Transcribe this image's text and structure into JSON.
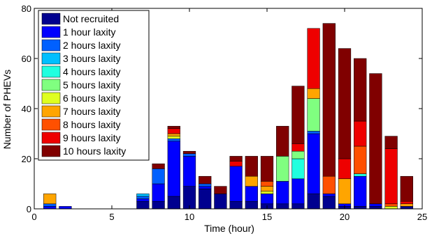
{
  "chart_data": {
    "type": "bar",
    "stacked": true,
    "xlabel": "Time (hour)",
    "ylabel": "Number of PHEVs",
    "xlim": [
      0,
      25
    ],
    "ylim": [
      0,
      80
    ],
    "xticks": [
      0,
      5,
      10,
      15,
      20,
      25
    ],
    "yticks": [
      0,
      20,
      40,
      60,
      80
    ],
    "legend_position": "top-left",
    "grid": false,
    "x": [
      1,
      2,
      3,
      4,
      5,
      6,
      7,
      8,
      9,
      10,
      11,
      12,
      13,
      14,
      15,
      16,
      17,
      18,
      19,
      20,
      21,
      22,
      23,
      24
    ],
    "series": [
      {
        "name": "Not recruited",
        "color": "#00008F",
        "values": [
          0,
          0,
          0,
          0,
          0,
          0,
          3,
          3,
          5,
          9,
          8,
          6,
          3,
          3,
          2,
          2,
          2,
          6,
          5,
          1,
          1,
          1,
          0,
          1
        ]
      },
      {
        "name": "1 hour laxity",
        "color": "#0000FF",
        "values": [
          1,
          1,
          0,
          0,
          0,
          0,
          1,
          7,
          22,
          12,
          1,
          0,
          14,
          6,
          4,
          9,
          10,
          24,
          1,
          1,
          12,
          1,
          0,
          0
        ]
      },
      {
        "name": "2 hours laxity",
        "color": "#0060FF",
        "values": [
          1,
          0,
          0,
          0,
          0,
          0,
          1,
          6,
          1,
          1,
          1,
          0,
          0,
          0,
          0,
          0,
          0,
          1,
          0,
          0,
          0,
          0,
          0,
          0
        ]
      },
      {
        "name": "3 hours laxity",
        "color": "#00BFFF",
        "values": [
          0,
          0,
          0,
          0,
          0,
          0,
          1,
          0,
          0,
          0,
          0,
          0,
          0,
          0,
          0,
          0,
          0,
          0,
          0,
          0,
          0,
          0,
          0,
          0
        ]
      },
      {
        "name": "4 hours laxity",
        "color": "#20FFDF",
        "values": [
          0,
          0,
          0,
          0,
          0,
          0,
          0,
          0,
          0,
          0,
          0,
          0,
          0,
          0,
          0,
          0,
          8,
          0,
          0,
          0,
          1,
          0,
          0,
          0
        ]
      },
      {
        "name": "5 hours laxity",
        "color": "#80FF80",
        "values": [
          0,
          0,
          0,
          0,
          0,
          0,
          0,
          0,
          0,
          0,
          0,
          0,
          0,
          0,
          0,
          10,
          3,
          13,
          0,
          0,
          0,
          0,
          0,
          0
        ]
      },
      {
        "name": "6 hours laxity",
        "color": "#DFFF20",
        "values": [
          0,
          0,
          0,
          0,
          0,
          0,
          0,
          0,
          1,
          0,
          0,
          0,
          0,
          0,
          1,
          0,
          0,
          0,
          0,
          0,
          0,
          0,
          1,
          0
        ]
      },
      {
        "name": "7 hours laxity",
        "color": "#FFA500",
        "values": [
          4,
          0,
          0,
          0,
          0,
          0,
          0,
          0,
          1,
          0,
          0,
          0,
          0,
          4,
          2,
          0,
          0,
          4,
          0,
          10,
          0,
          0,
          0,
          1
        ]
      },
      {
        "name": "8 hours laxity",
        "color": "#FF5000",
        "values": [
          0,
          0,
          0,
          0,
          0,
          0,
          0,
          0,
          0,
          0,
          0,
          0,
          0,
          0,
          2,
          0,
          0,
          0,
          7,
          0,
          11,
          0,
          1,
          0
        ]
      },
      {
        "name": "9 hours laxity",
        "color": "#EE0000",
        "values": [
          0,
          0,
          0,
          0,
          0,
          0,
          0,
          0,
          2,
          0,
          0,
          0,
          2,
          0,
          0,
          0,
          3,
          24,
          0,
          8,
          10,
          0,
          22,
          1
        ]
      },
      {
        "name": "10 hours laxity",
        "color": "#800000",
        "values": [
          0,
          0,
          0,
          0,
          0,
          0,
          0,
          2,
          1,
          1,
          3,
          3,
          2,
          8,
          10,
          12,
          23,
          0,
          61,
          44,
          25,
          52,
          5,
          10
        ]
      }
    ]
  }
}
